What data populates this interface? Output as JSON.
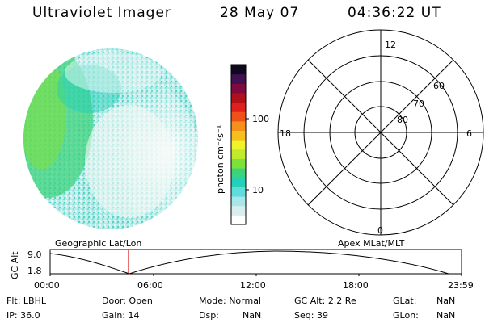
{
  "header": {
    "title": "Ultraviolet Imager",
    "date": "28 May 07",
    "time": "04:36:22 UT"
  },
  "colorbar": {
    "label": "photon cm⁻²s⁻¹",
    "ticks": [
      {
        "label": "100",
        "value": 100
      },
      {
        "label": "10",
        "value": 10
      }
    ],
    "colors": [
      "#ffffff",
      "#d7eef0",
      "#a8e6ea",
      "#5fdcdc",
      "#25d0b8",
      "#3cd47a",
      "#7ee03a",
      "#bfeb2a",
      "#f2f22a",
      "#f5c01e",
      "#f5901a",
      "#f0501a",
      "#e0201a",
      "#b0101a",
      "#800a40",
      "#401050",
      "#100820"
    ]
  },
  "polar_plot": {
    "lat_labels": [
      "80",
      "70",
      "60"
    ],
    "mlt_labels": {
      "top": "12",
      "left": "18",
      "right": "6",
      "bottom": "0"
    }
  },
  "timeline": {
    "left_caption": "Geographic Lat/Lon",
    "right_caption": "Apex MLat/MLT",
    "ylabel": "GC Alt",
    "yticks": [
      "9.0",
      "1.8"
    ],
    "xticks": [
      "00:00",
      "06:00",
      "12:00",
      "18:00",
      "23:59"
    ],
    "marker_time": "04:36:22"
  },
  "status": {
    "row1": [
      {
        "label": "Flt:",
        "value": "LBHL"
      },
      {
        "label": "Door:",
        "value": "Open"
      },
      {
        "label": "Mode:",
        "value": "Normal"
      },
      {
        "label": "GC Alt:",
        "value": "2.2 Re"
      },
      {
        "label": "GLat:",
        "value": "NaN"
      }
    ],
    "row2": [
      {
        "label": "IP:",
        "value": "36.0"
      },
      {
        "label": "Gain:",
        "value": "14"
      },
      {
        "label": "Dsp:",
        "value": "NaN"
      },
      {
        "label": "Seq:",
        "value": "39"
      },
      {
        "label": "GLon:",
        "value": "NaN"
      }
    ]
  }
}
